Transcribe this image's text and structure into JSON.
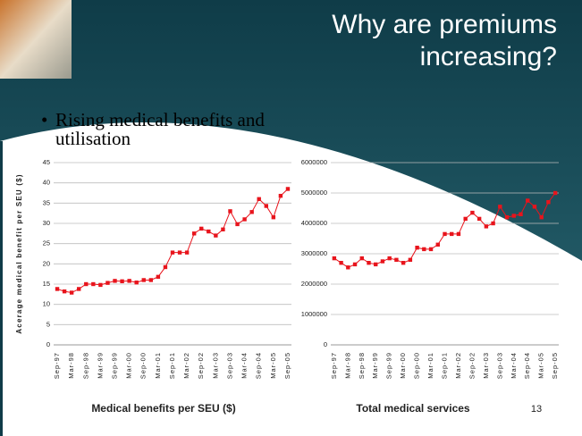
{
  "title": "Why are premiums increasing?",
  "bullet": "Rising medical benefits and utilisation",
  "page_number": "13",
  "chart_data": [
    {
      "type": "line",
      "title": "Medical benefits per SEU ($)",
      "ylabel": "Acerage medical benefit per SEU ($)",
      "categories": [
        "Sep-97",
        null,
        "Mar-98",
        null,
        "Sep-98",
        null,
        "Mar-99",
        null,
        "Sep-99",
        null,
        "Mar-00",
        null,
        "Sep-00",
        null,
        "Mar-01",
        null,
        "Sep-01",
        null,
        "Mar-02",
        null,
        "Sep-02",
        null,
        "Mar-03",
        null,
        "Sep-03",
        null,
        "Mar-04",
        null,
        "Sep-04",
        null,
        "Mar-05",
        null,
        "Sep-05"
      ],
      "values": [
        13.8,
        13.2,
        12.9,
        13.8,
        15.0,
        15.0,
        14.8,
        15.3,
        15.8,
        15.7,
        15.8,
        15.4,
        16.0,
        16.0,
        16.8,
        19.2,
        22.8,
        22.8,
        22.8,
        27.5,
        28.7,
        28.0,
        27.0,
        28.5,
        33.0,
        29.8,
        31.0,
        32.8,
        36.0,
        34.3,
        31.5,
        36.8,
        38.5
      ],
      "color": "#e8141c",
      "ylim": [
        0,
        45
      ],
      "yticks": [
        0,
        5,
        10,
        15,
        20,
        25,
        30,
        35,
        40,
        45
      ],
      "grid": true
    },
    {
      "type": "line",
      "title": "Total medical services",
      "categories": [
        "Sep-97",
        null,
        "Mar-98",
        null,
        "Sep-98",
        null,
        "Mar-99",
        null,
        "Sep-99",
        null,
        "Mar-00",
        null,
        "Sep-00",
        null,
        "Mar-01",
        null,
        "Sep-01",
        null,
        "Mar-02",
        null,
        "Sep-02",
        null,
        "Mar-03",
        null,
        "Sep-03",
        null,
        "Mar-04",
        null,
        "Sep-04",
        null,
        "Mar-05",
        null,
        "Sep-05"
      ],
      "values": [
        2850000,
        2700000,
        2550000,
        2650000,
        2850000,
        2700000,
        2650000,
        2750000,
        2850000,
        2800000,
        2700000,
        2800000,
        3200000,
        3150000,
        3150000,
        3300000,
        3650000,
        3650000,
        3650000,
        4150000,
        4350000,
        4150000,
        3900000,
        4000000,
        4550000,
        4200000,
        4250000,
        4300000,
        4750000,
        4550000,
        4200000,
        4700000,
        5000000
      ],
      "color": "#e8141c",
      "ylim": [
        0,
        6000000
      ],
      "yticks": [
        0,
        1000000,
        2000000,
        3000000,
        4000000,
        5000000,
        6000000
      ],
      "grid": true
    }
  ]
}
